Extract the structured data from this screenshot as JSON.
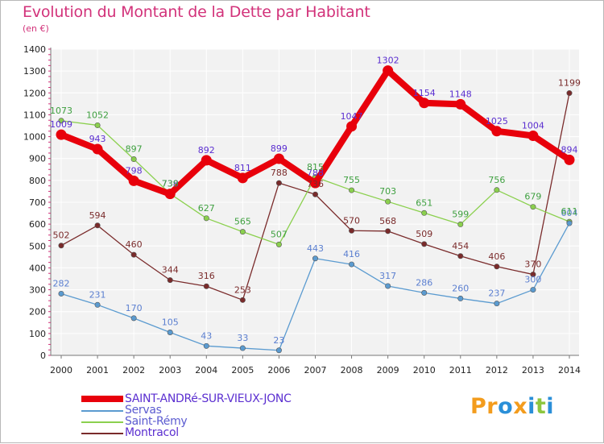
{
  "title": "Evolution du Montant de la Dette par Habitant",
  "unit": "(en €)",
  "logo": {
    "text": "Proxiti",
    "letters": [
      "P",
      "r",
      "o",
      "x",
      "i",
      "t",
      "i"
    ],
    "colors": [
      "#f39c1d",
      "#f39c1d",
      "#2a8fd8",
      "#f39c1d",
      "#2a8fd8",
      "#8dc63f",
      "#2a8fd8"
    ]
  },
  "chart_data": {
    "type": "line",
    "x": [
      "2000",
      "2001",
      "2002",
      "2003",
      "2004",
      "2005",
      "2006",
      "2007",
      "2008",
      "2009",
      "2010",
      "2011",
      "2012",
      "2013",
      "2014"
    ],
    "ylim": [
      0,
      1400
    ],
    "yticks": [
      "0",
      "100",
      "200",
      "300",
      "400",
      "500",
      "600",
      "700",
      "800",
      "900",
      "1000",
      "1100",
      "1200",
      "1300",
      "1400"
    ],
    "grid": true,
    "legend_position": "bottom-left",
    "series": [
      {
        "name": "SAINT-ANDRé-SUR-VIEUX-JONC",
        "color": "#e8000b",
        "label_color": "#5b2fd0",
        "values": [
          1009,
          943,
          798,
          738,
          892,
          811,
          899,
          788,
          1047,
          1302,
          1154,
          1148,
          1025,
          1004,
          894
        ],
        "labels": [
          "1009",
          "943",
          "798",
          "738",
          "892",
          "811",
          "899",
          "788",
          "1047",
          "1302",
          "1154",
          "1148",
          "1025",
          "1004",
          "894"
        ]
      },
      {
        "name": "Servas",
        "color": "#5b9bd0",
        "label_color": "#5b7fd0",
        "values": [
          282,
          231,
          170,
          105,
          43,
          33,
          23,
          443,
          416,
          317,
          286,
          260,
          237,
          300,
          604
        ],
        "labels": [
          "282",
          "231",
          "170",
          "105",
          "43",
          "33",
          "23",
          "443",
          "416",
          "317",
          "286",
          "260",
          "237",
          "300",
          "604"
        ]
      },
      {
        "name": "Saint-Rémy",
        "color": "#8bd04e",
        "label_color": "#3fa040",
        "values": [
          1073,
          1052,
          897,
          739,
          627,
          565,
          507,
          815,
          755,
          703,
          651,
          599,
          756,
          679,
          611
        ],
        "labels": [
          "1073",
          "1052",
          "897",
          "739",
          "627",
          "565",
          "507",
          "815",
          "755",
          "703",
          "651",
          "599",
          "756",
          "679",
          "611"
        ]
      },
      {
        "name": "Montracol",
        "color": "#7a2b2b",
        "label_color": "#7a2b2b",
        "values": [
          502,
          594,
          460,
          344,
          316,
          253,
          788,
          736,
          570,
          568,
          509,
          454,
          406,
          370,
          1199
        ],
        "labels": [
          "502",
          "594",
          "460",
          "344",
          "316",
          "253",
          "788",
          "736",
          "570",
          "568",
          "509",
          "454",
          "406",
          "370",
          "1199"
        ]
      }
    ]
  }
}
